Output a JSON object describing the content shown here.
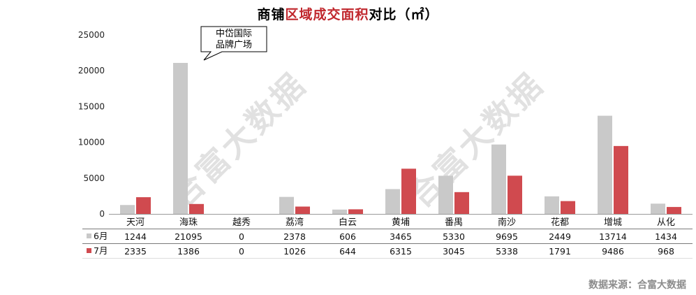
{
  "title": {
    "part1": "商铺",
    "accent": "区域成交面积",
    "part2": "对比（㎡）"
  },
  "source": "数据来源：合富大数据",
  "watermark": "合富大数据",
  "colors": {
    "june": "#c9c9c9",
    "july": "#d04a4f",
    "accent": "#c0272d"
  },
  "chart_data": {
    "type": "bar",
    "categories": [
      "天河",
      "海珠",
      "越秀",
      "荔湾",
      "白云",
      "黄埔",
      "番禺",
      "南沙",
      "花都",
      "增城",
      "从化"
    ],
    "series": [
      {
        "name": "6月",
        "values": [
          1244,
          21095,
          0,
          2378,
          606,
          3465,
          5330,
          9695,
          2449,
          13714,
          1434
        ]
      },
      {
        "name": "7月",
        "values": [
          2335,
          1386,
          0,
          1026,
          644,
          6315,
          3045,
          5338,
          1791,
          9486,
          968
        ]
      }
    ],
    "ylim": [
      0,
      25000
    ],
    "yticks": [
      0,
      5000,
      10000,
      15000,
      20000,
      25000
    ],
    "annotation": {
      "line1": "中岱国际",
      "line2": "品牌广场",
      "category": "海珠"
    },
    "data_table": true
  }
}
